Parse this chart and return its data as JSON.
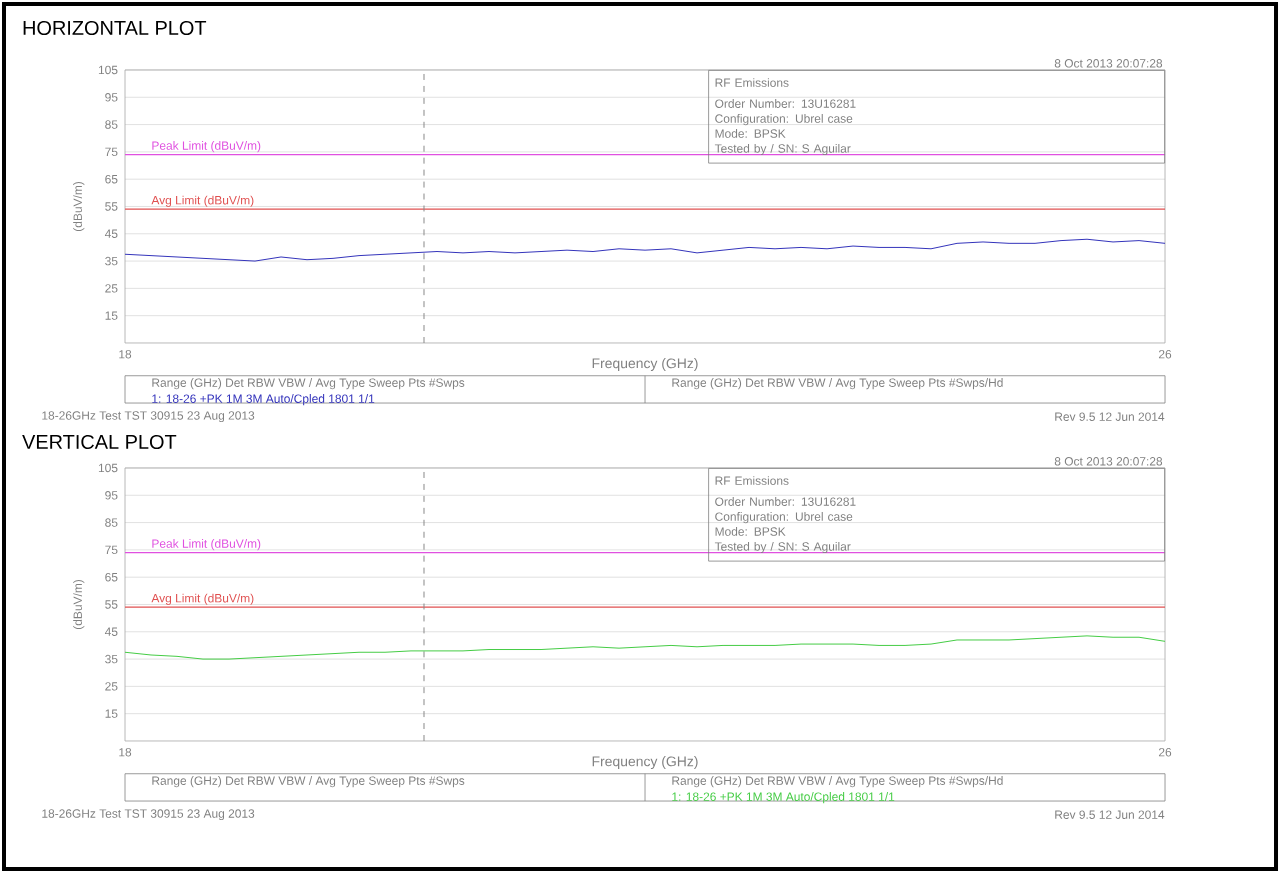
{
  "chart_data": [
    {
      "type": "line",
      "title": "HORIZONTAL PLOT",
      "xlabel": "Frequency (GHz)",
      "ylabel": "(dBuV/m)",
      "x": [
        18,
        18.2,
        18.4,
        18.6,
        18.8,
        19.0,
        19.2,
        19.4,
        19.6,
        19.8,
        20.0,
        20.2,
        20.4,
        20.6,
        20.8,
        21.0,
        21.2,
        21.4,
        21.6,
        21.8,
        22.0,
        22.2,
        22.4,
        22.6,
        22.8,
        23.0,
        23.2,
        23.4,
        23.6,
        23.8,
        24.0,
        24.2,
        24.4,
        24.6,
        24.8,
        25.0,
        25.2,
        25.4,
        25.6,
        25.8,
        26
      ],
      "series": [
        {
          "color": "#3333bb",
          "values": [
            37.5,
            37,
            36.5,
            36,
            35.5,
            35,
            36.5,
            35.5,
            36,
            37,
            37.5,
            38,
            38.5,
            38,
            38.5,
            38,
            38.5,
            39,
            38.5,
            39.5,
            39,
            39.5,
            38,
            39,
            40,
            39.5,
            40,
            39.5,
            40.5,
            40,
            40,
            39.5,
            41.5,
            42,
            41.5,
            41.5,
            42.5,
            43,
            42,
            42.5,
            41.5
          ]
        }
      ],
      "xlim": [
        18,
        26
      ],
      "ylim": [
        5,
        105
      ],
      "xticks": [
        18,
        26
      ],
      "yticks": [
        15,
        25,
        35,
        45,
        55,
        65,
        75,
        85,
        95,
        105
      ],
      "grid": "y",
      "marker": "none",
      "line_style": "solid",
      "ref_lines": [
        {
          "axis": "y",
          "value": 74,
          "label": "Peak Limit (dBuV/m)",
          "color": "#e050e0"
        },
        {
          "axis": "y",
          "value": 54,
          "label": "Avg Limit (dBuV/m)",
          "color": "#e05050"
        },
        {
          "axis": "x",
          "value": 20.3,
          "color": "#888888",
          "line_style": "dashed"
        }
      ],
      "annotations": [
        "8 Oct 2013   20:07:28",
        "RF Emissions",
        "Order Number: 13U16281",
        "Configuration: Ubrel case",
        "Mode: BPSK",
        "Tested by / SN: S Aguilar",
        "18-26GHz Test TST 30915 23 Aug 2013",
        "Rev 9.5 12 Jun 2014",
        "Range (GHz)    Det    RBW    VBW / Avg Type    Sweep    Pts    #Swps",
        "Range (GHz)    Det    RBW    VBW / Avg Type    Sweep    Pts    #Swps/Hd",
        "1: 18-26    +PK    1M    3M    Auto/Cpled    1801    1/1"
      ]
    },
    {
      "type": "line",
      "title": "VERTICAL PLOT",
      "xlabel": "Frequency (GHz)",
      "ylabel": "(dBuV/m)",
      "x": [
        18,
        18.2,
        18.4,
        18.6,
        18.8,
        19.0,
        19.2,
        19.4,
        19.6,
        19.8,
        20.0,
        20.2,
        20.4,
        20.6,
        20.8,
        21.0,
        21.2,
        21.4,
        21.6,
        21.8,
        22.0,
        22.2,
        22.4,
        22.6,
        22.8,
        23.0,
        23.2,
        23.4,
        23.6,
        23.8,
        24.0,
        24.2,
        24.4,
        24.6,
        24.8,
        25.0,
        25.2,
        25.4,
        25.6,
        25.8,
        26
      ],
      "series": [
        {
          "color": "#44cc44",
          "values": [
            37.5,
            36.5,
            36,
            35,
            35,
            35.5,
            36,
            36.5,
            37,
            37.5,
            37.5,
            38,
            38,
            38,
            38.5,
            38.5,
            38.5,
            39,
            39.5,
            39,
            39.5,
            40,
            39.5,
            40,
            40,
            40,
            40.5,
            40.5,
            40.5,
            40,
            40,
            40.5,
            42,
            42,
            42,
            42.5,
            43,
            43.5,
            43,
            43,
            41.5
          ]
        }
      ],
      "xlim": [
        18,
        26
      ],
      "ylim": [
        5,
        105
      ],
      "xticks": [
        18,
        26
      ],
      "yticks": [
        15,
        25,
        35,
        45,
        55,
        65,
        75,
        85,
        95,
        105
      ],
      "grid": "y",
      "marker": "none",
      "line_style": "solid",
      "ref_lines": [
        {
          "axis": "y",
          "value": 74,
          "label": "Peak Limit (dBuV/m)",
          "color": "#e050e0"
        },
        {
          "axis": "y",
          "value": 54,
          "label": "Avg Limit (dBuV/m)",
          "color": "#e05050"
        },
        {
          "axis": "x",
          "value": 20.3,
          "color": "#888888",
          "line_style": "dashed"
        }
      ],
      "annotations": [
        "8 Oct 2013   20:07:28",
        "RF Emissions",
        "Order Number: 13U16281",
        "Configuration: Ubrel case",
        "Mode: BPSK",
        "Tested by / SN: S Aguilar",
        "18-26GHz Test TST 30915 23 Aug 2013",
        "Rev 9.5 12 Jun 2014",
        "Range (GHz)    Det    RBW    VBW / Avg Type    Sweep    Pts    #Swps",
        "Range (GHz)    Det    RBW    VBW / Avg Type    Sweep    Pts    #Swps/Hd",
        "1: 18-26    +PK    1M    3M    Auto/Cpled    1801    1/1"
      ]
    }
  ]
}
